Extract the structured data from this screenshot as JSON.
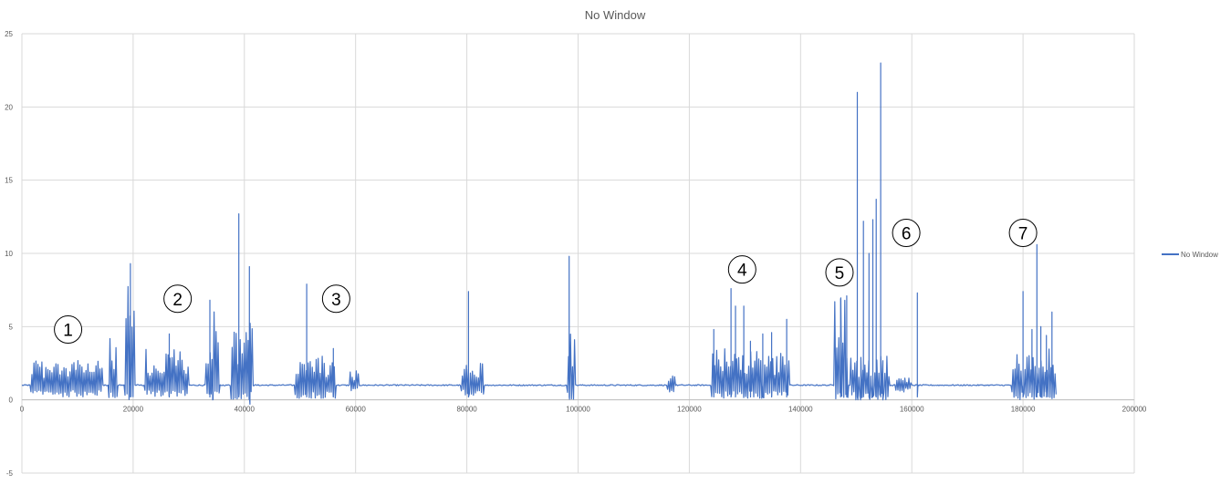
{
  "chart_data": {
    "type": "line",
    "title": "No Window",
    "xlabel": "",
    "ylabel": "",
    "xlim": [
      0,
      200000
    ],
    "ylim": [
      -5,
      25
    ],
    "x_ticks": [
      "0",
      "20000",
      "40000",
      "60000",
      "80000",
      "100000",
      "120000",
      "140000",
      "160000",
      "180000",
      "200000"
    ],
    "y_ticks": [
      "-5",
      "0",
      "5",
      "10",
      "15",
      "20",
      "25"
    ],
    "grid": true,
    "legend_position": "right",
    "series": [
      {
        "name": "No Window",
        "color": "#4472C4",
        "baseline": 1.0,
        "x_end": 186000,
        "bursts": [
          {
            "x0": 1500,
            "x1": 14500,
            "lo": 0.2,
            "hi": 2.8
          },
          {
            "x0": 15500,
            "x1": 17200,
            "lo": 0.1,
            "hi": 4.5
          },
          {
            "x0": 18500,
            "x1": 20200,
            "lo": 0.0,
            "hi": 8.5
          },
          {
            "x0": 22000,
            "x1": 30000,
            "lo": 0.2,
            "hi": 3.5
          },
          {
            "x0": 33000,
            "x1": 35500,
            "lo": 0.0,
            "hi": 6.5
          },
          {
            "x0": 37500,
            "x1": 41500,
            "lo": 0.0,
            "hi": 5.5
          },
          {
            "x0": 49000,
            "x1": 56500,
            "lo": 0.1,
            "hi": 3.0
          },
          {
            "x0": 59000,
            "x1": 60500,
            "lo": 0.5,
            "hi": 2.0
          },
          {
            "x0": 79000,
            "x1": 83000,
            "lo": 0.3,
            "hi": 2.5
          },
          {
            "x0": 98000,
            "x1": 99500,
            "lo": 0.0,
            "hi": 5.0
          },
          {
            "x0": 116000,
            "x1": 117500,
            "lo": 0.3,
            "hi": 2.0
          },
          {
            "x0": 124000,
            "x1": 138000,
            "lo": 0.1,
            "hi": 3.5
          },
          {
            "x0": 146000,
            "x1": 148500,
            "lo": 0.0,
            "hi": 7.0
          },
          {
            "x0": 149000,
            "x1": 156000,
            "lo": 0.0,
            "hi": 3.0
          },
          {
            "x0": 157000,
            "x1": 160000,
            "lo": 0.5,
            "hi": 1.5
          },
          {
            "x0": 178000,
            "x1": 186000,
            "lo": 0.0,
            "hi": 3.5
          }
        ],
        "spikes": [
          {
            "x": 19500,
            "y": 9.3
          },
          {
            "x": 26500,
            "y": 4.5
          },
          {
            "x": 33800,
            "y": 6.8
          },
          {
            "x": 39000,
            "y": 12.7
          },
          {
            "x": 40900,
            "y": 9.1
          },
          {
            "x": 51200,
            "y": 7.9
          },
          {
            "x": 56000,
            "y": 3.5
          },
          {
            "x": 80300,
            "y": 7.4
          },
          {
            "x": 98400,
            "y": 9.8
          },
          {
            "x": 124400,
            "y": 4.8
          },
          {
            "x": 127500,
            "y": 7.6
          },
          {
            "x": 128300,
            "y": 6.4
          },
          {
            "x": 129800,
            "y": 6.4
          },
          {
            "x": 131000,
            "y": 4.0
          },
          {
            "x": 133200,
            "y": 4.5
          },
          {
            "x": 134800,
            "y": 4.6
          },
          {
            "x": 137500,
            "y": 5.5
          },
          {
            "x": 147200,
            "y": 6.9
          },
          {
            "x": 148300,
            "y": 7.1
          },
          {
            "x": 150200,
            "y": 21.0
          },
          {
            "x": 151300,
            "y": 12.2
          },
          {
            "x": 152300,
            "y": 10.0
          },
          {
            "x": 153000,
            "y": 12.3
          },
          {
            "x": 153600,
            "y": 13.7
          },
          {
            "x": 154400,
            "y": 23.0
          },
          {
            "x": 161000,
            "y": 7.3
          },
          {
            "x": 180000,
            "y": 7.4
          },
          {
            "x": 181600,
            "y": 4.8
          },
          {
            "x": 182500,
            "y": 10.6
          },
          {
            "x": 183200,
            "y": 5.0
          },
          {
            "x": 184200,
            "y": 4.4
          },
          {
            "x": 185200,
            "y": 6.0
          }
        ],
        "dips": [
          {
            "x": 34300,
            "y": 0.0
          },
          {
            "x": 41000,
            "y": -0.3
          },
          {
            "x": 150800,
            "y": 0.0
          },
          {
            "x": 154800,
            "y": 0.0
          }
        ]
      }
    ],
    "annotations": [
      {
        "label": "1",
        "x": 8300,
        "y": 4.8
      },
      {
        "label": "2",
        "x": 28000,
        "y": 6.9
      },
      {
        "label": "3",
        "x": 56500,
        "y": 6.9
      },
      {
        "label": "4",
        "x": 129500,
        "y": 8.9
      },
      {
        "label": "5",
        "x": 147000,
        "y": 8.7
      },
      {
        "label": "6",
        "x": 159000,
        "y": 11.4
      },
      {
        "label": "7",
        "x": 180000,
        "y": 11.4
      }
    ]
  }
}
